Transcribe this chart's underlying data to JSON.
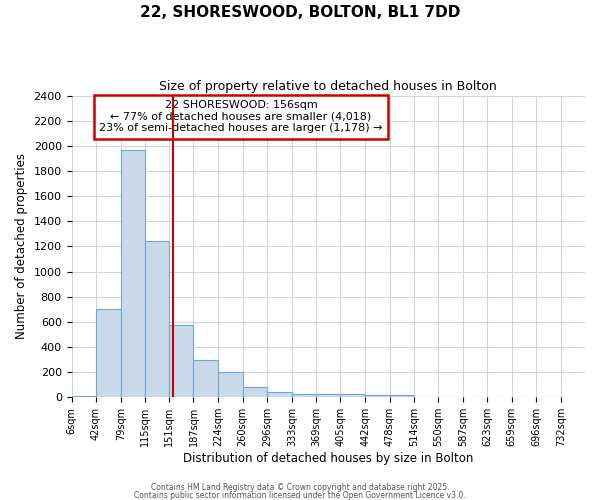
{
  "title_line1": "22, SHORESWOOD, BOLTON, BL1 7DD",
  "title_line2": "Size of property relative to detached houses in Bolton",
  "xlabel": "Distribution of detached houses by size in Bolton",
  "ylabel": "Number of detached properties",
  "bin_labels": [
    "6sqm",
    "42sqm",
    "79sqm",
    "115sqm",
    "151sqm",
    "187sqm",
    "224sqm",
    "260sqm",
    "296sqm",
    "333sqm",
    "369sqm",
    "405sqm",
    "442sqm",
    "478sqm",
    "514sqm",
    "550sqm",
    "587sqm",
    "623sqm",
    "659sqm",
    "696sqm",
    "732sqm"
  ],
  "bin_edges": [
    6,
    42,
    79,
    115,
    151,
    187,
    224,
    260,
    296,
    333,
    369,
    405,
    442,
    478,
    514,
    550,
    587,
    623,
    659,
    696,
    732
  ],
  "bar_heights": [
    10,
    700,
    1970,
    1240,
    575,
    300,
    200,
    80,
    40,
    30,
    30,
    30,
    15,
    15,
    5,
    2,
    2,
    1,
    1,
    0
  ],
  "bar_color": "#c8daea",
  "bar_edge_color": "#6aaad4",
  "property_size": 156,
  "red_line_color": "#cc0000",
  "annotation_line1": "22 SHORESWOOD: 156sqm",
  "annotation_line2": "← 77% of detached houses are smaller (4,018)",
  "annotation_line3": "23% of semi-detached houses are larger (1,178) →",
  "annotation_box_color": "#cc0000",
  "ylim": [
    0,
    2400
  ],
  "yticks": [
    0,
    200,
    400,
    600,
    800,
    1000,
    1200,
    1400,
    1600,
    1800,
    2000,
    2200,
    2400
  ],
  "footer_line1": "Contains HM Land Registry data © Crown copyright and database right 2025.",
  "footer_line2": "Contains public sector information licensed under the Open Government Licence v3.0.",
  "bg_color": "#ffffff",
  "plot_bg_color": "#ffffff",
  "grid_color": "#c0cfe0"
}
